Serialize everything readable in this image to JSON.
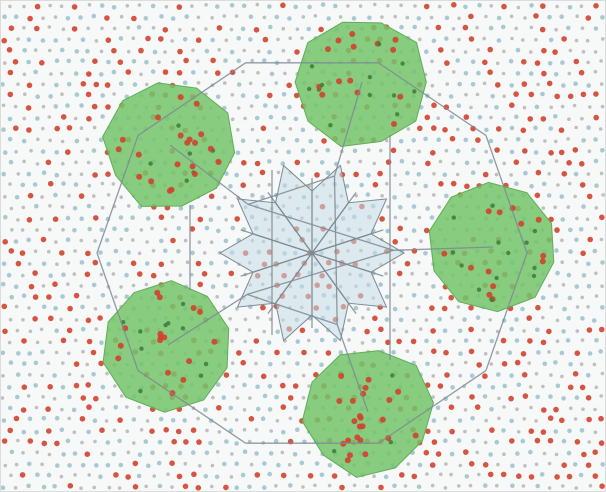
{
  "image": {
    "background_color": "#f7f8f8",
    "atom_colors": {
      "red": "#d2432d",
      "blue": "#9fc3cf",
      "grey": "#b8b8b8"
    },
    "cluster_fill": "#74c46a",
    "cluster_opacity": 0.85,
    "line_color": "#7c8a93",
    "center_tile_fill": "#c6dde6",
    "cluster_count": 5
  }
}
